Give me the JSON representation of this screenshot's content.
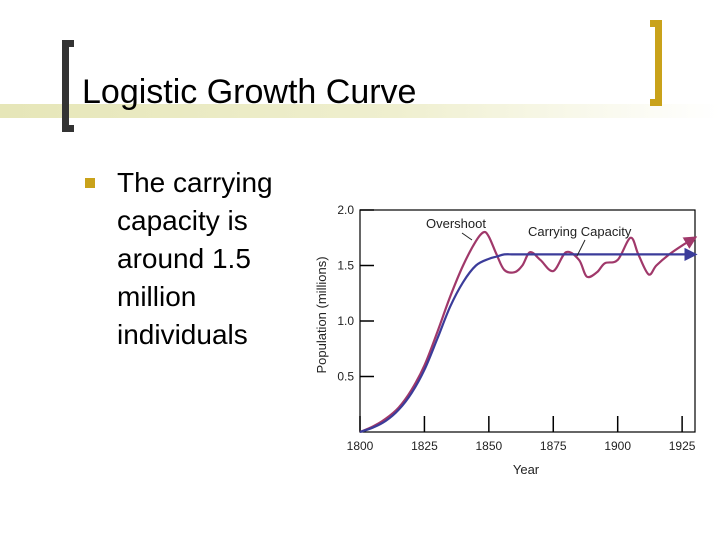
{
  "slide": {
    "title": "Logistic Growth Curve",
    "bullet_text": "The carrying capacity is around 1.5 million individuals"
  },
  "colors": {
    "accent": "#c9a21a",
    "actual_population": "#a0386a",
    "logistic_model": "#3b3c9a"
  },
  "chart_data": {
    "type": "line",
    "xlabel": "Year",
    "ylabel": "Population (millions)",
    "xlim": [
      1800,
      1930
    ],
    "ylim": [
      0,
      2.0
    ],
    "xticks": [
      "1800",
      "1825",
      "1850",
      "1875",
      "1900",
      "1925"
    ],
    "yticks": [
      "0.5",
      "1.0",
      "1.5",
      "2.0"
    ],
    "annotations": [
      "Overshoot",
      "Carrying Capacity"
    ],
    "series": [
      {
        "x": [
          1800,
          1805,
          1810,
          1815,
          1820,
          1825,
          1830,
          1835,
          1840,
          1845,
          1848,
          1850,
          1853,
          1856,
          1860,
          1863,
          1866,
          1870,
          1875,
          1880,
          1885,
          1888,
          1892,
          1895,
          1900,
          1905,
          1908,
          1912,
          1915,
          1920,
          1925,
          1930
        ],
        "y": [
          0.0,
          0.05,
          0.12,
          0.22,
          0.38,
          0.6,
          0.9,
          1.22,
          1.5,
          1.72,
          1.8,
          1.76,
          1.6,
          1.46,
          1.44,
          1.5,
          1.62,
          1.55,
          1.45,
          1.62,
          1.55,
          1.4,
          1.44,
          1.52,
          1.55,
          1.75,
          1.6,
          1.42,
          1.5,
          1.6,
          1.68,
          1.75
        ]
      },
      {
        "x": [
          1800,
          1805,
          1810,
          1815,
          1820,
          1825,
          1830,
          1835,
          1840,
          1845,
          1850,
          1853,
          1856,
          1860,
          1870,
          1880,
          1890,
          1900,
          1910,
          1920,
          1930
        ],
        "y": [
          0.0,
          0.04,
          0.1,
          0.2,
          0.35,
          0.56,
          0.84,
          1.13,
          1.35,
          1.5,
          1.56,
          1.58,
          1.6,
          1.6,
          1.6,
          1.6,
          1.6,
          1.6,
          1.6,
          1.6,
          1.6
        ]
      }
    ]
  }
}
